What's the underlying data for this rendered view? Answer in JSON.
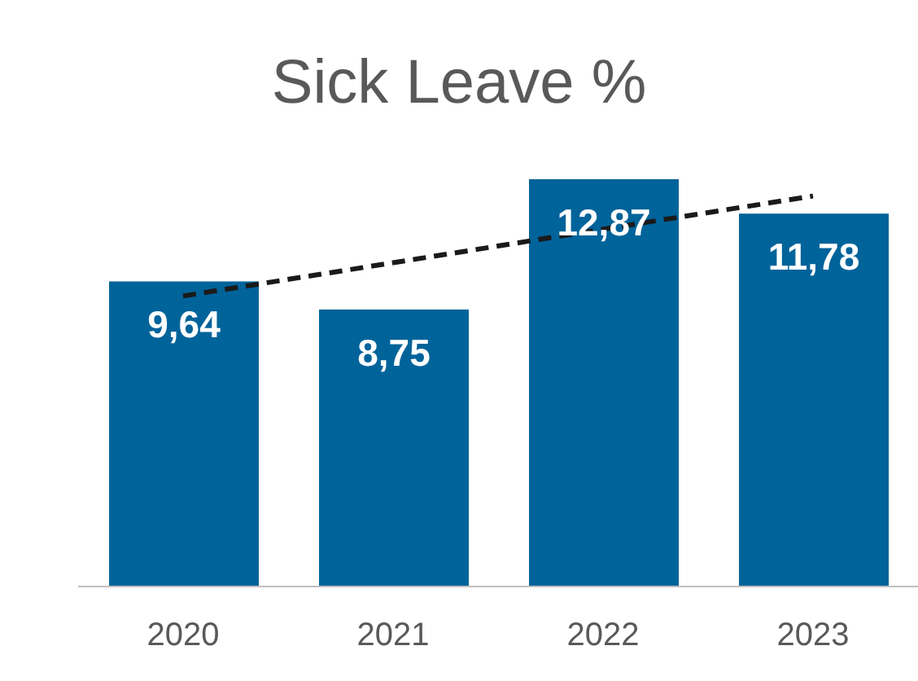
{
  "chart_data": {
    "type": "bar",
    "title": "Sick Leave %",
    "categories": [
      "2020",
      "2021",
      "2022",
      "2023"
    ],
    "series": [
      {
        "color": "#00639a",
        "values": [
          9.64,
          8.75,
          12.87,
          11.78
        ],
        "value_labels": [
          "9,64",
          "8,75",
          "12,87",
          "11,78"
        ]
      },
      {
        "type": "line",
        "color": "#1a1a1a",
        "values": [
          9.18,
          10.23,
          11.29,
          12.34
        ],
        "line_style": "dashed",
        "marker": "none"
      }
    ],
    "grid": false,
    "legend": false
  }
}
